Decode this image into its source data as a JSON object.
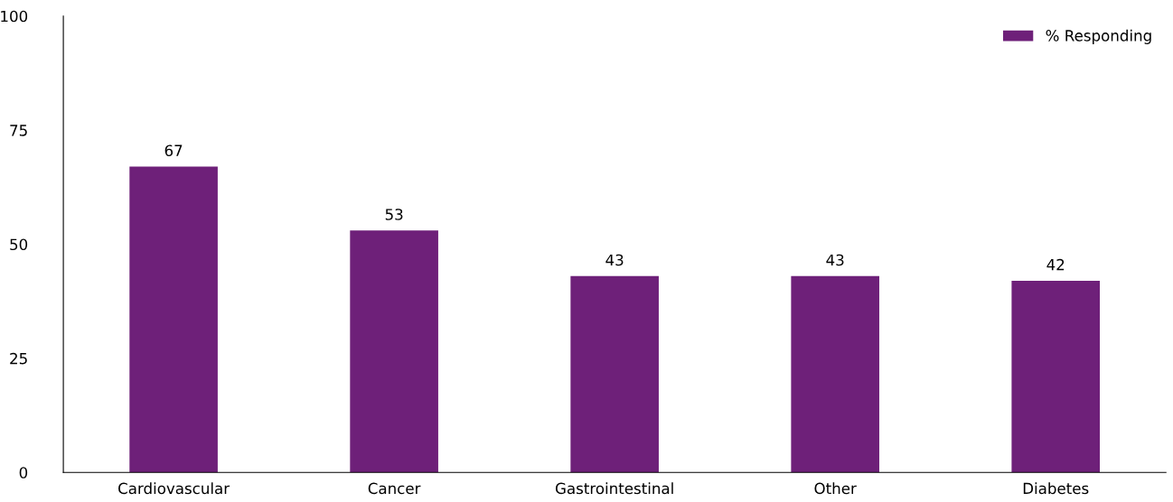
{
  "chart_data": {
    "type": "bar",
    "categories": [
      "Cardiovascular",
      "Cancer",
      "Gastrointestinal",
      "Other",
      "Diabetes"
    ],
    "series": [
      {
        "name": "% Responding",
        "color": "#6e2079",
        "values": [
          67,
          53,
          43,
          43,
          42
        ]
      }
    ],
    "ylim": [
      0,
      100
    ],
    "yticks": [
      0,
      25,
      50,
      75,
      100
    ],
    "grid": false,
    "legend": "top right",
    "data_labels": true
  }
}
